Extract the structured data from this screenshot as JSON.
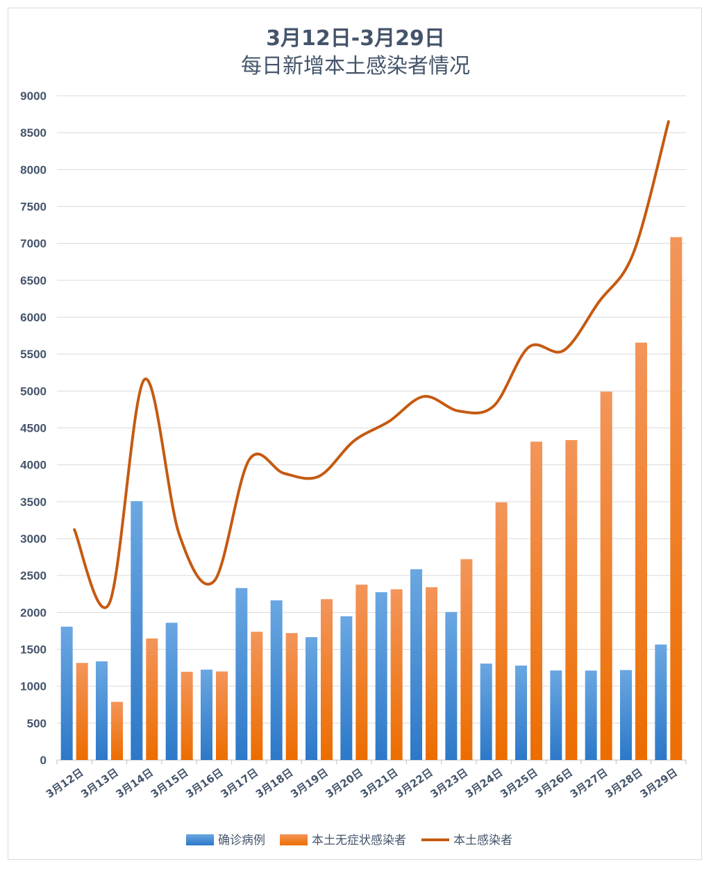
{
  "chart_data": {
    "type": "bar",
    "title": "3月12日-3月29日",
    "subtitle": "每日新增本土感染者情况",
    "categories": [
      "3月12日",
      "3月13日",
      "3月14日",
      "3月15日",
      "3月16日",
      "3月17日",
      "3月18日",
      "3月19日",
      "3月20日",
      "3月21日",
      "3月22日",
      "3月23日",
      "3月24日",
      "3月25日",
      "3月26日",
      "3月27日",
      "3月28日",
      "3月29日"
    ],
    "ylim": [
      0,
      9000
    ],
    "yticks": [
      0,
      500,
      1000,
      1500,
      2000,
      2500,
      3000,
      3500,
      4000,
      4500,
      5000,
      5500,
      6000,
      6500,
      7000,
      7500,
      8000,
      8500,
      9000
    ],
    "grid": true,
    "legend_position": "bottom",
    "series": [
      {
        "name": "确诊病例",
        "kind": "bar",
        "color": "#3a85d0",
        "values": [
          1807,
          1337,
          3507,
          1860,
          1225,
          2330,
          2164,
          1665,
          1948,
          2274,
          2585,
          2006,
          1307,
          1280,
          1214,
          1212,
          1219,
          1565
        ]
      },
      {
        "name": "本土无症状感染者",
        "kind": "bar",
        "color": "#ee7510",
        "values": [
          1315,
          788,
          1647,
          1196,
          1200,
          1738,
          1720,
          2180,
          2376,
          2313,
          2341,
          2722,
          3491,
          4314,
          4335,
          4991,
          5656,
          7085
        ]
      },
      {
        "name": "本土感染者",
        "kind": "line",
        "color": "#c55a11",
        "values": [
          3122,
          2125,
          5154,
          3056,
          2425,
          4068,
          3884,
          3845,
          4324,
          4587,
          4926,
          4728,
          4798,
          5594,
          5549,
          6203,
          6875,
          8650
        ]
      }
    ]
  }
}
